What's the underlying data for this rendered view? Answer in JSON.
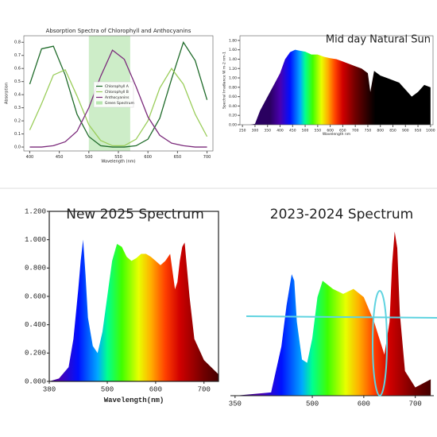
{
  "chart_data": [
    {
      "type": "line",
      "title": "Absorption Spectra of Chlorophyll and Anthocyanins",
      "x_label": "Wavelength (nm)",
      "y_label": "Absorption",
      "x": [
        400,
        420,
        440,
        460,
        480,
        500,
        520,
        540,
        560,
        580,
        600,
        620,
        640,
        660,
        680,
        700
      ],
      "series": [
        {
          "name": "Chlorophyll A",
          "color": "#1f6b2a",
          "values": [
            0.48,
            0.75,
            0.77,
            0.55,
            0.25,
            0.08,
            0.01,
            0.0,
            0.0,
            0.01,
            0.06,
            0.22,
            0.52,
            0.8,
            0.66,
            0.36
          ]
        },
        {
          "name": "Chlorophyll B",
          "color": "#9acd5a",
          "values": [
            0.13,
            0.33,
            0.55,
            0.59,
            0.39,
            0.17,
            0.05,
            0.01,
            0.01,
            0.06,
            0.2,
            0.45,
            0.6,
            0.48,
            0.25,
            0.08
          ]
        },
        {
          "name": "Anthocyanins",
          "color": "#7b2a7b",
          "values": [
            0.0,
            0.0,
            0.01,
            0.04,
            0.12,
            0.3,
            0.54,
            0.74,
            0.67,
            0.46,
            0.23,
            0.09,
            0.03,
            0.01,
            0.0,
            0.0
          ]
        }
      ],
      "bands": [
        {
          "name": "Green Spectrum",
          "color": "#b8e6b0",
          "range": [
            500,
            570
          ]
        }
      ],
      "xlim": [
        390,
        710
      ],
      "xticks": [
        400,
        450,
        500,
        550,
        600,
        650,
        700
      ],
      "ylim": [
        -0.03,
        0.85
      ],
      "yticks": [
        {
          "value": 0,
          "label": "0.0"
        },
        0.1,
        0.2,
        0.3,
        0.4,
        0.5,
        0.6,
        0.7,
        0.8
      ]
    },
    {
      "type": "area",
      "title": "Mid day Natural Sun",
      "x_label": "Wavelength nm",
      "y_label": "Spectral Irradiance W m-2 nm-1",
      "x": [
        280,
        300,
        320,
        340,
        360,
        380,
        400,
        420,
        440,
        460,
        480,
        500,
        525,
        550,
        575,
        600,
        625,
        650,
        675,
        700,
        725,
        750,
        760,
        775,
        800,
        825,
        850,
        875,
        900,
        925,
        950,
        975,
        1000
      ],
      "values": [
        0,
        0.02,
        0.3,
        0.5,
        0.7,
        0.9,
        1.1,
        1.4,
        1.55,
        1.6,
        1.58,
        1.56,
        1.5,
        1.5,
        1.45,
        1.42,
        1.4,
        1.35,
        1.3,
        1.25,
        1.2,
        1.1,
        0.7,
        1.15,
        1.05,
        1.0,
        0.95,
        0.9,
        0.75,
        0.6,
        0.7,
        0.85,
        0.8
      ],
      "xlim": [
        240,
        1010
      ],
      "xticks": [
        250,
        300,
        350,
        400,
        450,
        500,
        550,
        600,
        650,
        700,
        750,
        800,
        850,
        900,
        950,
        1000
      ],
      "ylim": [
        0,
        1.9
      ],
      "yticks": [
        {
          "value": 0,
          "label": "0.00"
        },
        {
          "value": 0.2,
          "label": "0.20"
        },
        {
          "value": 0.4,
          "label": "0.40"
        },
        {
          "value": 0.6,
          "label": "0.60"
        },
        {
          "value": 0.8,
          "label": "0.80"
        },
        {
          "value": 1,
          "label": "1.00"
        },
        {
          "value": 1.2,
          "label": "1.20"
        },
        {
          "value": 1.4,
          "label": "1.40"
        },
        {
          "value": 1.6,
          "label": "1.60"
        },
        {
          "value": 1.8,
          "label": "1.80"
        }
      ]
    },
    {
      "type": "area",
      "title": "New 2025 Spectrum",
      "x_label": "Wavelength(nm)",
      "x": [
        380,
        400,
        420,
        430,
        440,
        445,
        450,
        455,
        460,
        470,
        480,
        490,
        500,
        510,
        520,
        530,
        540,
        550,
        560,
        570,
        580,
        590,
        600,
        610,
        620,
        630,
        640,
        645,
        650,
        655,
        660,
        670,
        680,
        700,
        730
      ],
      "values": [
        0,
        0.02,
        0.1,
        0.3,
        0.65,
        0.85,
        1.0,
        0.75,
        0.45,
        0.25,
        0.2,
        0.35,
        0.6,
        0.85,
        0.97,
        0.95,
        0.88,
        0.85,
        0.87,
        0.9,
        0.9,
        0.88,
        0.85,
        0.82,
        0.85,
        0.9,
        0.65,
        0.7,
        0.85,
        0.95,
        0.98,
        0.6,
        0.3,
        0.15,
        0.05
      ],
      "xlim": [
        380,
        730
      ],
      "xticks": [
        380,
        500,
        600,
        700
      ],
      "ylim": [
        0,
        1.2
      ],
      "yticks": [
        {
          "value": 0,
          "label": "0.000"
        },
        {
          "value": 0.2,
          "label": "0.200"
        },
        {
          "value": 0.4,
          "label": "0.400"
        },
        {
          "value": 0.6,
          "label": "0.600"
        },
        {
          "value": 0.8,
          "label": "0.800"
        },
        {
          "value": 1,
          "label": "1.000"
        },
        {
          "value": 1.2,
          "label": "1.200"
        }
      ]
    },
    {
      "type": "area",
      "title": "2023-2024 Spectrum",
      "x": [
        350,
        420,
        440,
        450,
        460,
        465,
        470,
        480,
        490,
        500,
        510,
        520,
        540,
        560,
        580,
        600,
        620,
        640,
        650,
        655,
        660,
        665,
        670,
        680,
        700,
        730
      ],
      "values": [
        0,
        0.02,
        0.3,
        0.55,
        0.74,
        0.7,
        0.45,
        0.22,
        0.2,
        0.35,
        0.6,
        0.7,
        0.65,
        0.62,
        0.65,
        0.6,
        0.45,
        0.25,
        0.45,
        0.8,
        1.0,
        0.9,
        0.5,
        0.15,
        0.05,
        0.1
      ],
      "xlim": [
        341,
        736
      ],
      "xticks": [
        350,
        500,
        600,
        700
      ],
      "ylim": [
        0,
        1.2
      ]
    }
  ]
}
